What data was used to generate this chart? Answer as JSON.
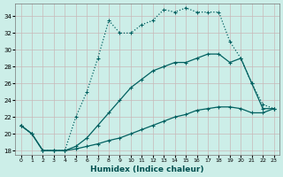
{
  "xlabel": "Humidex (Indice chaleur)",
  "bg_color": "#cceee8",
  "grid_color": "#c8b8b8",
  "line_color": "#006060",
  "xlim": [
    -0.5,
    23.5
  ],
  "ylim": [
    17.5,
    35.5
  ],
  "yticks": [
    18,
    20,
    22,
    24,
    26,
    28,
    30,
    32,
    34
  ],
  "xticks": [
    0,
    1,
    2,
    3,
    4,
    5,
    6,
    7,
    8,
    9,
    10,
    11,
    12,
    13,
    14,
    15,
    16,
    17,
    18,
    19,
    20,
    21,
    22,
    23
  ],
  "lines": [
    {
      "x": [
        0,
        1,
        2,
        3,
        4,
        5,
        6,
        7,
        8,
        9,
        10,
        11,
        12,
        13,
        14,
        15,
        16,
        17,
        18,
        19,
        20,
        21,
        22,
        23
      ],
      "y": [
        21,
        20,
        18,
        18,
        18,
        22,
        25,
        29,
        33.5,
        32,
        32,
        33,
        33.5,
        34.8,
        34.5,
        35,
        34.5,
        34.5,
        34.5,
        31,
        29,
        26,
        23.5,
        23
      ],
      "linestyle": "dotted",
      "linewidth": 0.9
    },
    {
      "x": [
        0,
        1,
        2,
        3,
        4,
        5,
        6,
        7,
        8,
        9,
        10,
        11,
        12,
        13,
        14,
        15,
        16,
        17,
        18,
        19,
        20,
        21,
        22,
        23
      ],
      "y": [
        21,
        20,
        18,
        18,
        18,
        18.5,
        19.5,
        21,
        22.5,
        24,
        25.5,
        26.5,
        27.5,
        28,
        28.5,
        28.5,
        29,
        29.5,
        29.5,
        28.5,
        29,
        26,
        23,
        23
      ],
      "linestyle": "solid",
      "linewidth": 0.9
    },
    {
      "x": [
        0,
        1,
        2,
        3,
        4,
        5,
        6,
        7,
        8,
        9,
        10,
        11,
        12,
        13,
        14,
        15,
        16,
        17,
        18,
        19,
        20,
        21,
        22,
        23
      ],
      "y": [
        21,
        20,
        18,
        18,
        18,
        18.2,
        18.5,
        18.8,
        19.2,
        19.5,
        20,
        20.5,
        21,
        21.5,
        22,
        22.3,
        22.8,
        23,
        23.2,
        23.2,
        23,
        22.5,
        22.5,
        23
      ],
      "linestyle": "solid",
      "linewidth": 0.9
    }
  ]
}
